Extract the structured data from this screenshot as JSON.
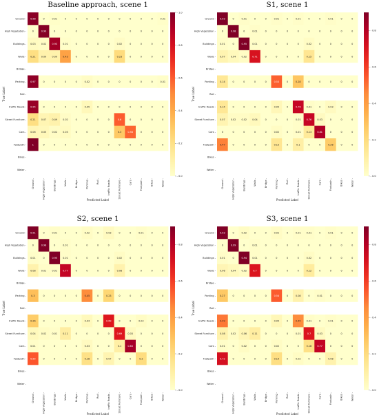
{
  "chart_data": [
    {
      "type": "heatmap",
      "title": "Baseline approach, scene 1",
      "xlabel": "Predicted Label",
      "ylabel": "True Label",
      "categories": [
        "Ground",
        "High Vegetation",
        "Buildings",
        "Walls",
        "Bridge",
        "Parking",
        "Rail",
        "traffic Roads",
        "Street Furniture",
        "Cars",
        "Footpath",
        "Bikes",
        "Water"
      ],
      "vmin": 0,
      "vmax": 1.0,
      "colorbar_ticks": [
        "0.0",
        "0.2",
        "0.4",
        "0.6",
        "0.8",
        "1.0"
      ],
      "values": [
        [
          0.98,
          0,
          0.01,
          0,
          0,
          0,
          0,
          0,
          0,
          0,
          0,
          0,
          0.01
        ],
        [
          0,
          0.99,
          0,
          0,
          0,
          0,
          0,
          0,
          0,
          0,
          0,
          0,
          0
        ],
        [
          0.03,
          0.02,
          0.93,
          0.01,
          0,
          0,
          0,
          0,
          0.02,
          0,
          0,
          0,
          0
        ],
        [
          0.21,
          0.09,
          0.09,
          0.43,
          0,
          0,
          0,
          0,
          0.23,
          0,
          0,
          0,
          0
        ],
        [
          null,
          null,
          null,
          null,
          null,
          null,
          null,
          null,
          null,
          null,
          null,
          null,
          null
        ],
        [
          0.97,
          0,
          0,
          0,
          0,
          0.02,
          0,
          0,
          0,
          0,
          0,
          0,
          0.01
        ],
        [
          null,
          null,
          null,
          null,
          null,
          null,
          null,
          null,
          null,
          null,
          null,
          null,
          null
        ],
        [
          0.95,
          0,
          0,
          0,
          0,
          0.05,
          0,
          0,
          0,
          0,
          0,
          0,
          0
        ],
        [
          0.21,
          0.07,
          0.09,
          0.02,
          0,
          0,
          0,
          0,
          0.6,
          0,
          0,
          0,
          0
        ],
        [
          0.06,
          0.05,
          0.02,
          0.03,
          0,
          0,
          0,
          0,
          0.3,
          0.58,
          0,
          0,
          0
        ],
        [
          1,
          0,
          0,
          0,
          0,
          0,
          0,
          0,
          0,
          0,
          0,
          0,
          0
        ],
        [
          null,
          null,
          null,
          null,
          null,
          null,
          null,
          null,
          null,
          null,
          null,
          null,
          null
        ],
        [
          null,
          null,
          null,
          null,
          null,
          null,
          null,
          null,
          null,
          null,
          null,
          null,
          null
        ]
      ]
    },
    {
      "type": "heatmap",
      "title": "S1, scene 1",
      "xlabel": "Predicted Label",
      "ylabel": "True Label",
      "categories": [
        "Ground",
        "High Vegetation",
        "Buildings",
        "Walls",
        "Bridge",
        "Parking",
        "Rail",
        "traffic Roads",
        "Street Furniture",
        "Cars",
        "Footpath",
        "Bikes",
        "Water"
      ],
      "vmin": 0,
      "vmax": 0.9,
      "colorbar_ticks": [
        "0.0",
        "0.2",
        "0.4",
        "0.6",
        "0.8"
      ],
      "values": [
        [
          0.93,
          0,
          0.01,
          0,
          0,
          0.01,
          0,
          0.01,
          0,
          0,
          0.01,
          0,
          0
        ],
        [
          0,
          0.98,
          0,
          0.01,
          0,
          0,
          0,
          0,
          0,
          0,
          0,
          0,
          0
        ],
        [
          0.01,
          0,
          0.95,
          0.01,
          0,
          0,
          0,
          0,
          0.02,
          0,
          0,
          0,
          0
        ],
        [
          0.07,
          0.04,
          0.02,
          0.71,
          0,
          0,
          0,
          0,
          0.15,
          0,
          0,
          0,
          0
        ],
        [
          null,
          null,
          null,
          null,
          null,
          null,
          null,
          null,
          null,
          null,
          null,
          null,
          null
        ],
        [
          0.14,
          0,
          0,
          0,
          0,
          0.53,
          0,
          0.28,
          0,
          0,
          0,
          0,
          0
        ],
        [
          null,
          null,
          null,
          null,
          null,
          null,
          null,
          null,
          null,
          null,
          null,
          null,
          null
        ],
        [
          0.14,
          0,
          0,
          0,
          0,
          0.05,
          0,
          0.76,
          0.01,
          0,
          0.03,
          0,
          0
        ],
        [
          0.07,
          0.02,
          0.02,
          0.04,
          0,
          0,
          0,
          0.01,
          0.76,
          0.03,
          0,
          0,
          0
        ],
        [
          0,
          0,
          0,
          0,
          0,
          0.02,
          0,
          0.01,
          0.13,
          0.81,
          0,
          0,
          0
        ],
        [
          0.47,
          0,
          0,
          0,
          0,
          0.15,
          0,
          0.1,
          0,
          0,
          0.26,
          0,
          0
        ],
        [
          null,
          null,
          null,
          null,
          null,
          null,
          null,
          null,
          null,
          null,
          null,
          null,
          null
        ],
        [
          null,
          null,
          null,
          null,
          null,
          null,
          null,
          null,
          null,
          null,
          null,
          null,
          null
        ]
      ]
    },
    {
      "type": "heatmap",
      "title": "S2, scene 1",
      "xlabel": "Predicted Label",
      "ylabel": "True Label",
      "categories": [
        "Ground",
        "High Vegetation",
        "Buildings",
        "Walls",
        "Bridge",
        "Parking",
        "Rail",
        "traffic Roads",
        "Street Furniture",
        "Cars",
        "Footpath",
        "Bikes",
        "Water"
      ],
      "vmin": 0,
      "vmax": 0.9,
      "colorbar_ticks": [
        "0.0",
        "0.2",
        "0.4",
        "0.6",
        "0.8"
      ],
      "values": [
        [
          0.91,
          0,
          0.01,
          0,
          0,
          0.02,
          0,
          0.03,
          0,
          0,
          0.01,
          0,
          0
        ],
        [
          0,
          0.98,
          0,
          0.01,
          0,
          0,
          0,
          0,
          0,
          0,
          0,
          0,
          0
        ],
        [
          0.01,
          0,
          0.95,
          0.01,
          0,
          0,
          0,
          0,
          0.02,
          0,
          0,
          0,
          0
        ],
        [
          0.08,
          0.01,
          0.01,
          0.77,
          0,
          0,
          0,
          0,
          0.08,
          0,
          0,
          0,
          0
        ],
        [
          null,
          null,
          null,
          null,
          null,
          null,
          null,
          null,
          null,
          null,
          null,
          null,
          null
        ],
        [
          0.3,
          0,
          0,
          0,
          0,
          0.45,
          0,
          0.23,
          0,
          0,
          0,
          0,
          0
        ],
        [
          null,
          null,
          null,
          null,
          null,
          null,
          null,
          null,
          null,
          null,
          null,
          null,
          null
        ],
        [
          0.26,
          0,
          0,
          0,
          0,
          0.04,
          0,
          0.69,
          0,
          0,
          0.02,
          0,
          0
        ],
        [
          0.04,
          0.02,
          0.01,
          0.11,
          0,
          0,
          0,
          0,
          0.69,
          0.03,
          0,
          0,
          0
        ],
        [
          0.01,
          0,
          0,
          0,
          0,
          0.03,
          0,
          0,
          0.1,
          0.83,
          0,
          0,
          0
        ],
        [
          0.55,
          0,
          0,
          0,
          0,
          0.18,
          0,
          0.07,
          0,
          0,
          0.2,
          0,
          0
        ],
        [
          null,
          null,
          null,
          null,
          null,
          null,
          null,
          null,
          null,
          null,
          null,
          null,
          null
        ],
        [
          null,
          null,
          null,
          null,
          null,
          null,
          null,
          null,
          null,
          null,
          null,
          null,
          null
        ]
      ]
    },
    {
      "type": "heatmap",
      "title": "S3, scene 1",
      "xlabel": "Predicted Label",
      "ylabel": "True Label",
      "categories": [
        "Ground",
        "High Vegetation",
        "Buildings",
        "Walls",
        "Bridge",
        "Parking",
        "Rail",
        "traffic Roads",
        "Street Furniture",
        "Cars",
        "Footpath",
        "Bikes",
        "Water"
      ],
      "vmin": 0,
      "vmax": 0.9,
      "colorbar_ticks": [
        "0.0",
        "0.2",
        "0.4",
        "0.6",
        "0.8"
      ],
      "values": [
        [
          0.93,
          0,
          0.02,
          0,
          0,
          0.02,
          0,
          0.01,
          0.01,
          0,
          0.01,
          0,
          0
        ],
        [
          0,
          0.99,
          0,
          0.01,
          0,
          0,
          0,
          0,
          0,
          0,
          0,
          0,
          0
        ],
        [
          0.01,
          0,
          0.94,
          0.01,
          0,
          0,
          0,
          0,
          0.02,
          0,
          0,
          0,
          0
        ],
        [
          0.06,
          0.04,
          0.02,
          0.7,
          0,
          0,
          0,
          0,
          0.12,
          0,
          0,
          0,
          0
        ],
        [
          null,
          null,
          null,
          null,
          null,
          null,
          null,
          null,
          null,
          null,
          null,
          null,
          null
        ],
        [
          0.27,
          0,
          0,
          0,
          0,
          0.54,
          0,
          0.08,
          0,
          0.01,
          0,
          0,
          0
        ],
        [
          null,
          null,
          null,
          null,
          null,
          null,
          null,
          null,
          null,
          null,
          null,
          null,
          null
        ],
        [
          0.49,
          0,
          0,
          0,
          0,
          0.05,
          0,
          0.45,
          0.01,
          0,
          0.01,
          0,
          0
        ],
        [
          0.08,
          0.02,
          0.06,
          0.11,
          0,
          0,
          0,
          0.01,
          0.7,
          0.03,
          0,
          0,
          0
        ],
        [
          0.01,
          0,
          0.02,
          0,
          0,
          0.02,
          0,
          0,
          0.18,
          0.77,
          0,
          0,
          0
        ],
        [
          0.72,
          0,
          0,
          0,
          0,
          0.19,
          0,
          0.02,
          0,
          0,
          0.08,
          0,
          0
        ],
        [
          null,
          null,
          null,
          null,
          null,
          null,
          null,
          null,
          null,
          null,
          null,
          null,
          null
        ],
        [
          null,
          null,
          null,
          null,
          null,
          null,
          null,
          null,
          null,
          null,
          null,
          null,
          null
        ]
      ]
    }
  ]
}
